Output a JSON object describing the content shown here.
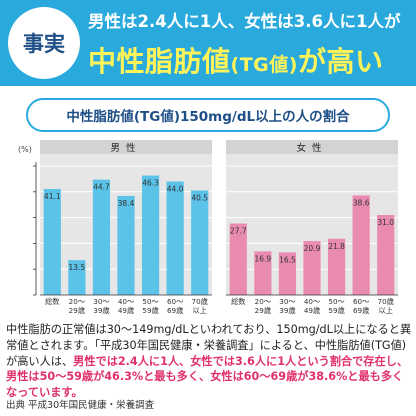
{
  "header": {
    "badge": "事実",
    "line1_prefix": "男性は",
    "line1_male_ratio": "2.4人に1人",
    "line1_middle": "、女性は",
    "line1_female_ratio": "3.6人に1人",
    "line1_suffix": "が",
    "line2_part1": "中性脂肪値",
    "line2_part2": "(TG値)",
    "line2_part3": "が高い"
  },
  "subtitle": "中性脂肪値(TG値)150mg/dL以上の人の割合",
  "colors": {
    "banner": "#2aa9dc",
    "headline_yellow": "#fff35a",
    "male_bar": "#5bc3e8",
    "female_bar": "#e98ab0",
    "panel": "#e6e6e6",
    "highlight": "#e0306f",
    "navy": "#1e4f86"
  },
  "chart_data": {
    "type": "bar",
    "unit_label": "(%)",
    "ylim": [
      0,
      50
    ],
    "yticks": [
      0,
      10,
      20,
      30,
      40,
      50
    ],
    "categories": [
      "総数",
      "20～29歳",
      "30～39歳",
      "40～49歳",
      "50～59歳",
      "60～69歳",
      "70歳以上"
    ],
    "series": [
      {
        "name": "男性",
        "values": [
          41.1,
          13.5,
          44.7,
          38.4,
          46.3,
          44.0,
          40.5
        ]
      },
      {
        "name": "女性",
        "values": [
          27.7,
          16.9,
          16.5,
          20.9,
          21.8,
          38.6,
          31.0
        ]
      }
    ],
    "category_lines": [
      [
        "総数"
      ],
      [
        "20～",
        "29歳"
      ],
      [
        "30～",
        "39歳"
      ],
      [
        "40～",
        "49歳"
      ],
      [
        "50～",
        "59歳"
      ],
      [
        "60～",
        "69歳"
      ],
      [
        "70歳",
        "以上"
      ]
    ],
    "value_labels": [
      [
        "41.1",
        "13.5",
        "44.7",
        "38.4",
        "46.3",
        "44.0",
        "40.5"
      ],
      [
        "27.7",
        "16.9",
        "16.5",
        "20.9",
        "21.8",
        "38.6",
        "31.0"
      ]
    ]
  },
  "body": {
    "text1": "中性脂肪の正常値は30～149mg/dLといわれており、150mg/dL以上になると異常値とされます。「平成30年国民健康・栄養調査」によると、中性脂肪値(TG値)が高い人は、",
    "highlight": "男性では2.4人に1人、女性では3.6人に1人という割合で存在し、男性は50～59歳が46.3%と最も多く、女性は60～69歳が38.6%と最も多くなっています。"
  },
  "source": "出典 平成30年国民健康・栄養調査"
}
